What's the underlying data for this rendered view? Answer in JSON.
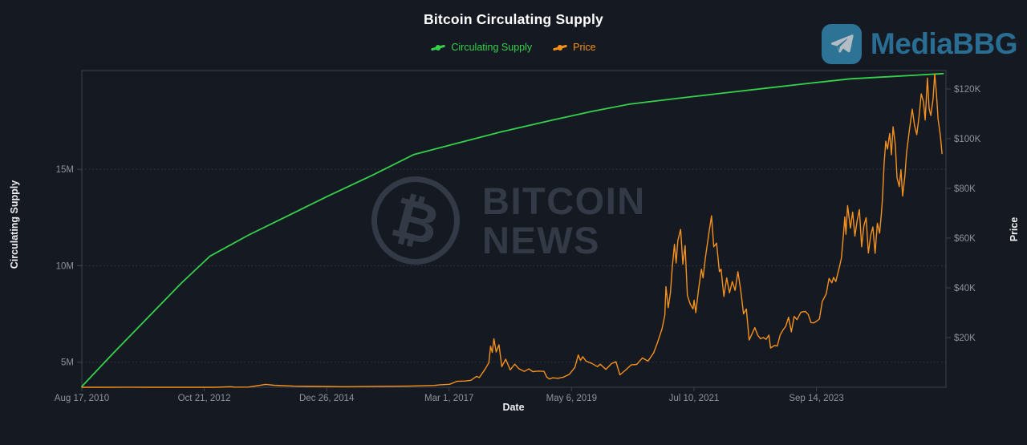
{
  "header": {
    "title": "Bitcoin Circulating Supply"
  },
  "legend": [
    {
      "label": "Circulating Supply",
      "color": "#35d14b"
    },
    {
      "label": "Price",
      "color": "#f5911d"
    }
  ],
  "logo": {
    "text": "MediaBBG",
    "icon": "telegram-plane-icon",
    "icon_bg": "#2d7396",
    "plane_color": "#b3bcc3",
    "text_color": "#2a6d92"
  },
  "watermark": {
    "symbol": "₿",
    "line1": "BITCOIN",
    "line2": "NEWS",
    "color": "#333a46"
  },
  "colors": {
    "background": "#151922",
    "plot_border": "#3c424e",
    "gridline": "#3c424e",
    "tick_label": "#8d929c",
    "axis_title": "#eceef1",
    "title": "#ffffff",
    "supply_line": "#35d14b",
    "price_line": "#f5911d"
  },
  "chart_data": {
    "type": "line",
    "title": "Bitcoin Circulating Supply",
    "xlabel": "Date",
    "legend_position": "top-center",
    "grid": "horizontal dotted lines at left-axis ticks only",
    "x_unit": "decimal year",
    "x_range": [
      2010.63,
      2026.0
    ],
    "x_ticks": [
      {
        "x": 2010.63,
        "label": "Aug 17, 2010"
      },
      {
        "x": 2012.807,
        "label": "Oct 21, 2012"
      },
      {
        "x": 2014.985,
        "label": "Dec 26, 2014"
      },
      {
        "x": 2017.162,
        "label": "Mar 1, 2017"
      },
      {
        "x": 2019.34,
        "label": "May 6, 2019"
      },
      {
        "x": 2021.518,
        "label": "Jul 10, 2021"
      },
      {
        "x": 2023.696,
        "label": "Sep 14, 2023"
      }
    ],
    "left_axis": {
      "label": "Circulating Supply",
      "unit": "million BTC",
      "range": [
        3.7,
        20.12
      ],
      "ticks": [
        {
          "v": 5,
          "label": "5M"
        },
        {
          "v": 10,
          "label": "10M"
        },
        {
          "v": 15,
          "label": "15M"
        }
      ]
    },
    "right_axis": {
      "label": "Price",
      "unit": "USD thousands",
      "range": [
        0,
        127.4
      ],
      "ticks": [
        {
          "v": 20,
          "label": "$20K"
        },
        {
          "v": 40,
          "label": "$40K"
        },
        {
          "v": 60,
          "label": "$60K"
        },
        {
          "v": 80,
          "label": "$80K"
        },
        {
          "v": 100,
          "label": "$100K"
        },
        {
          "v": 120,
          "label": "$120K"
        }
      ]
    },
    "series": [
      {
        "name": "Circulating Supply",
        "axis": "left",
        "color": "#35d14b",
        "width": 1.8,
        "points": [
          [
            2010.63,
            3.74
          ],
          [
            2011.2,
            5.5
          ],
          [
            2011.8,
            7.3
          ],
          [
            2012.4,
            9.1
          ],
          [
            2012.91,
            10.5
          ],
          [
            2013.6,
            11.6
          ],
          [
            2014.3,
            12.6
          ],
          [
            2015.0,
            13.6
          ],
          [
            2015.8,
            14.7
          ],
          [
            2016.53,
            15.76
          ],
          [
            2017.3,
            16.35
          ],
          [
            2018.1,
            16.95
          ],
          [
            2019.0,
            17.55
          ],
          [
            2019.7,
            18.0
          ],
          [
            2020.37,
            18.38
          ],
          [
            2021.2,
            18.67
          ],
          [
            2022.0,
            18.94
          ],
          [
            2022.9,
            19.24
          ],
          [
            2023.6,
            19.47
          ],
          [
            2024.3,
            19.69
          ],
          [
            2025.1,
            19.82
          ],
          [
            2025.95,
            19.96
          ]
        ]
      },
      {
        "name": "Price",
        "axis": "right",
        "color": "#f5911d",
        "width": 1.4,
        "points": [
          [
            2010.63,
            0.0001
          ],
          [
            2011.0,
            0.0003
          ],
          [
            2011.45,
            0.03
          ],
          [
            2011.9,
            0.002
          ],
          [
            2012.5,
            0.007
          ],
          [
            2013.0,
            0.013
          ],
          [
            2013.28,
            0.23
          ],
          [
            2013.35,
            0.07
          ],
          [
            2013.6,
            0.1
          ],
          [
            2013.9,
            1.15
          ],
          [
            2014.05,
            0.8
          ],
          [
            2014.4,
            0.45
          ],
          [
            2014.98,
            0.32
          ],
          [
            2015.3,
            0.23
          ],
          [
            2015.9,
            0.38
          ],
          [
            2016.4,
            0.45
          ],
          [
            2016.9,
            0.73
          ],
          [
            2017.0,
            1.0
          ],
          [
            2017.17,
            1.2
          ],
          [
            2017.3,
            2.4
          ],
          [
            2017.45,
            2.5
          ],
          [
            2017.55,
            2.8
          ],
          [
            2017.65,
            4.4
          ],
          [
            2017.7,
            3.9
          ],
          [
            2017.8,
            7.2
          ],
          [
            2017.87,
            9.9
          ],
          [
            2017.9,
            16.5
          ],
          [
            2017.93,
            14.0
          ],
          [
            2017.96,
            19.5
          ],
          [
            2018.0,
            14.2
          ],
          [
            2018.05,
            17.1
          ],
          [
            2018.1,
            8.3
          ],
          [
            2018.17,
            11.3
          ],
          [
            2018.25,
            7.0
          ],
          [
            2018.33,
            9.3
          ],
          [
            2018.4,
            7.5
          ],
          [
            2018.5,
            6.4
          ],
          [
            2018.58,
            7.4
          ],
          [
            2018.65,
            6.3
          ],
          [
            2018.75,
            6.5
          ],
          [
            2018.85,
            6.4
          ],
          [
            2018.9,
            4.1
          ],
          [
            2018.95,
            3.3
          ],
          [
            2019.0,
            3.8
          ],
          [
            2019.1,
            3.6
          ],
          [
            2019.2,
            4.1
          ],
          [
            2019.3,
            5.2
          ],
          [
            2019.4,
            8.0
          ],
          [
            2019.46,
            13.0
          ],
          [
            2019.5,
            10.8
          ],
          [
            2019.54,
            12.3
          ],
          [
            2019.6,
            10.5
          ],
          [
            2019.7,
            9.6
          ],
          [
            2019.8,
            8.3
          ],
          [
            2019.85,
            9.3
          ],
          [
            2019.95,
            7.2
          ],
          [
            2020.05,
            9.5
          ],
          [
            2020.13,
            10.3
          ],
          [
            2020.2,
            5.0
          ],
          [
            2020.3,
            6.9
          ],
          [
            2020.4,
            9.0
          ],
          [
            2020.5,
            9.2
          ],
          [
            2020.6,
            11.8
          ],
          [
            2020.7,
            10.5
          ],
          [
            2020.8,
            13.8
          ],
          [
            2020.87,
            18.0
          ],
          [
            2020.95,
            23.5
          ],
          [
            2021.0,
            29.0
          ],
          [
            2021.02,
            40.5
          ],
          [
            2021.06,
            32.0
          ],
          [
            2021.1,
            38.0
          ],
          [
            2021.13,
            48.0
          ],
          [
            2021.17,
            57.5
          ],
          [
            2021.2,
            50.0
          ],
          [
            2021.23,
            59.0
          ],
          [
            2021.28,
            63.5
          ],
          [
            2021.32,
            49.5
          ],
          [
            2021.36,
            57.0
          ],
          [
            2021.4,
            37.0
          ],
          [
            2021.45,
            33.5
          ],
          [
            2021.5,
            31.5
          ],
          [
            2021.52,
            35.0
          ],
          [
            2021.55,
            30.0
          ],
          [
            2021.6,
            39.5
          ],
          [
            2021.65,
            47.5
          ],
          [
            2021.68,
            44.0
          ],
          [
            2021.72,
            52.0
          ],
          [
            2021.78,
            61.5
          ],
          [
            2021.83,
            69.0
          ],
          [
            2021.87,
            56.5
          ],
          [
            2021.92,
            58.0
          ],
          [
            2021.97,
            46.5
          ],
          [
            2022.0,
            47.5
          ],
          [
            2022.05,
            36.5
          ],
          [
            2022.1,
            44.0
          ],
          [
            2022.15,
            38.0
          ],
          [
            2022.2,
            42.5
          ],
          [
            2022.25,
            39.0
          ],
          [
            2022.3,
            46.5
          ],
          [
            2022.35,
            39.0
          ],
          [
            2022.4,
            29.5
          ],
          [
            2022.45,
            31.5
          ],
          [
            2022.5,
            19.0
          ],
          [
            2022.55,
            21.5
          ],
          [
            2022.6,
            24.0
          ],
          [
            2022.65,
            21.0
          ],
          [
            2022.7,
            19.5
          ],
          [
            2022.75,
            20.0
          ],
          [
            2022.8,
            19.3
          ],
          [
            2022.85,
            21.0
          ],
          [
            2022.88,
            15.8
          ],
          [
            2022.95,
            16.8
          ],
          [
            2023.0,
            16.6
          ],
          [
            2023.05,
            21.0
          ],
          [
            2023.1,
            23.0
          ],
          [
            2023.15,
            24.5
          ],
          [
            2023.2,
            28.2
          ],
          [
            2023.25,
            22.3
          ],
          [
            2023.3,
            28.5
          ],
          [
            2023.35,
            27.2
          ],
          [
            2023.42,
            30.2
          ],
          [
            2023.5,
            30.5
          ],
          [
            2023.55,
            29.3
          ],
          [
            2023.6,
            26.0
          ],
          [
            2023.65,
            25.9
          ],
          [
            2023.7,
            26.6
          ],
          [
            2023.75,
            27.5
          ],
          [
            2023.8,
            34.5
          ],
          [
            2023.87,
            37.5
          ],
          [
            2023.92,
            43.8
          ],
          [
            2023.97,
            42.0
          ],
          [
            2024.0,
            44.2
          ],
          [
            2024.04,
            42.5
          ],
          [
            2024.1,
            48.0
          ],
          [
            2024.14,
            52.0
          ],
          [
            2024.18,
            62.5
          ],
          [
            2024.2,
            68.5
          ],
          [
            2024.22,
            61.5
          ],
          [
            2024.25,
            73.1
          ],
          [
            2024.3,
            64.0
          ],
          [
            2024.34,
            70.5
          ],
          [
            2024.38,
            60.8
          ],
          [
            2024.42,
            67.0
          ],
          [
            2024.46,
            71.5
          ],
          [
            2024.5,
            56.5
          ],
          [
            2024.54,
            65.0
          ],
          [
            2024.58,
            68.2
          ],
          [
            2024.62,
            54.0
          ],
          [
            2024.66,
            61.0
          ],
          [
            2024.7,
            64.5
          ],
          [
            2024.74,
            53.9
          ],
          [
            2024.78,
            66.0
          ],
          [
            2024.82,
            62.0
          ],
          [
            2024.85,
            69.4
          ],
          [
            2024.87,
            75.6
          ],
          [
            2024.9,
            90.0
          ],
          [
            2024.93,
            99.0
          ],
          [
            2024.96,
            95.8
          ],
          [
            2025.0,
            102.1
          ],
          [
            2025.03,
            93.5
          ],
          [
            2025.06,
            104.8
          ],
          [
            2025.1,
            97.5
          ],
          [
            2025.13,
            84.3
          ],
          [
            2025.17,
            80.7
          ],
          [
            2025.2,
            87.5
          ],
          [
            2025.23,
            76.9
          ],
          [
            2025.27,
            85.0
          ],
          [
            2025.3,
            94.3
          ],
          [
            2025.35,
            103.7
          ],
          [
            2025.4,
            111.9
          ],
          [
            2025.44,
            105.4
          ],
          [
            2025.48,
            101.6
          ],
          [
            2025.52,
            108.8
          ],
          [
            2025.56,
            118.0
          ],
          [
            2025.6,
            114.8
          ],
          [
            2025.63,
            107.5
          ],
          [
            2025.67,
            124.4
          ],
          [
            2025.7,
            112.1
          ],
          [
            2025.73,
            109.3
          ],
          [
            2025.77,
            115.9
          ],
          [
            2025.8,
            126.1
          ],
          [
            2025.83,
            118.2
          ],
          [
            2025.86,
            107.8
          ],
          [
            2025.9,
            101.3
          ],
          [
            2025.93,
            94.0
          ]
        ]
      }
    ]
  }
}
